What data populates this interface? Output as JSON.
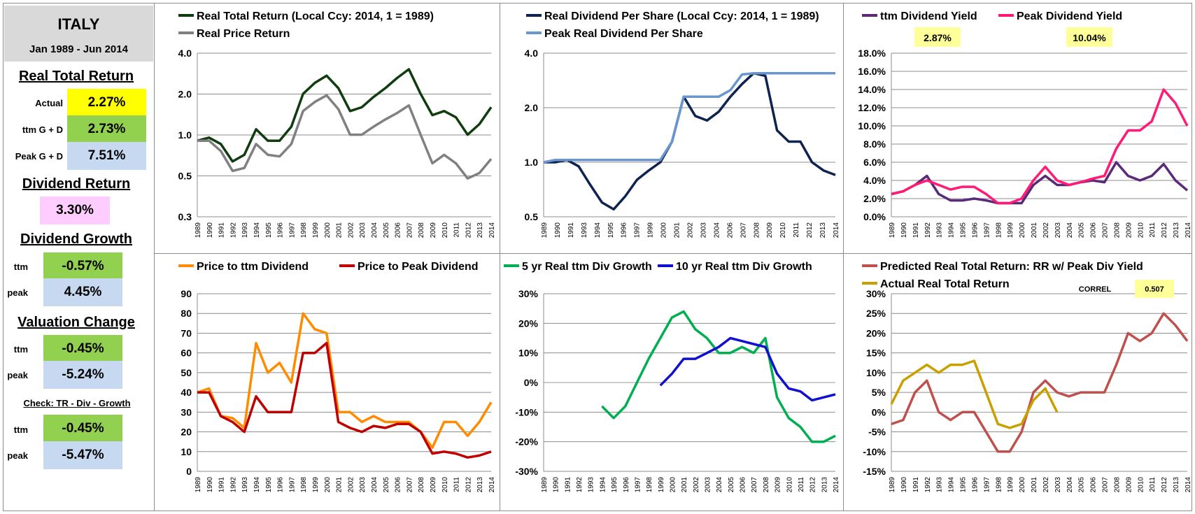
{
  "sidebar": {
    "country": "ITALY",
    "period": "Jan 1989 - Jun 2014",
    "real_total_return": {
      "header": "Real Total Return",
      "actual_label": "Actual",
      "actual": "2.27%",
      "ttm_label": "ttm  G + D",
      "ttm": "2.73%",
      "peak_label": "Peak  G + D",
      "peak": "7.51%"
    },
    "dividend_return": {
      "header": "Dividend Return",
      "value": "3.30%"
    },
    "dividend_growth": {
      "header": "Dividend Growth",
      "ttm_label": "ttm",
      "ttm": "-0.57%",
      "peak_label": "peak",
      "peak": "4.45%"
    },
    "valuation_change": {
      "header": "Valuation Change",
      "ttm_label": "ttm",
      "ttm": "-0.45%",
      "peak_label": "peak",
      "peak": "-5.24%"
    },
    "check": {
      "header": "Check: TR - Div - Growth",
      "ttm_label": "ttm",
      "ttm": "-0.45%",
      "peak_label": "peak",
      "peak": "-5.47%"
    }
  },
  "years": [
    "1989",
    "1990",
    "1991",
    "1992",
    "1993",
    "1994",
    "1995",
    "1996",
    "1997",
    "1998",
    "1999",
    "2000",
    "2001",
    "2002",
    "2003",
    "2004",
    "2005",
    "2006",
    "2007",
    "2008",
    "2009",
    "2010",
    "2011",
    "2012",
    "2013",
    "2014"
  ],
  "years_alt": [
    "1989",
    "1990",
    "1991",
    "1993",
    "1994",
    "1995",
    "1996",
    "1997",
    "1999",
    "2000",
    "2001",
    "2002",
    "2003",
    "2004",
    "2006",
    "2007",
    "2008",
    "2009",
    "2010",
    "2011",
    "2012",
    "2013",
    "2014"
  ],
  "chart_data": [
    {
      "id": "c1",
      "type": "line",
      "scale": "log",
      "yticks": [
        "4.0",
        "2.0",
        "1.0",
        "0.5",
        "0.3"
      ],
      "ylim": [
        0.3,
        4.0
      ],
      "series": [
        {
          "name": "Real Total Return (Local Ccy: 2014, 1 = 1989)",
          "color": "#0f3d0f",
          "values": [
            1.0,
            1.05,
            0.95,
            0.72,
            0.8,
            1.2,
            1.0,
            1.0,
            1.25,
            2.1,
            2.5,
            2.8,
            2.3,
            1.6,
            1.7,
            2.0,
            2.3,
            2.7,
            3.1,
            2.1,
            1.5,
            1.6,
            1.45,
            1.1,
            1.3,
            1.7
          ]
        },
        {
          "name": "Real Price Return",
          "color": "#808080",
          "values": [
            1.0,
            1.0,
            0.85,
            0.62,
            0.65,
            0.95,
            0.8,
            0.78,
            0.95,
            1.6,
            1.85,
            2.05,
            1.65,
            1.1,
            1.1,
            1.25,
            1.4,
            1.55,
            1.75,
            1.1,
            0.7,
            0.8,
            0.7,
            0.55,
            0.6,
            0.75
          ]
        }
      ]
    },
    {
      "id": "c2",
      "type": "line",
      "scale": "log",
      "yticks": [
        "4.0",
        "2.0",
        "1.0",
        "0.5"
      ],
      "ylim": [
        0.5,
        4.0
      ],
      "series": [
        {
          "name": "Real Dividend Per Share (Local Ccy: 2014, 1 = 1989)",
          "color": "#0f2350",
          "values": [
            1.0,
            1.0,
            1.03,
            0.95,
            0.75,
            0.6,
            0.55,
            0.65,
            0.8,
            0.9,
            1.0,
            1.3,
            2.3,
            1.8,
            1.7,
            1.9,
            2.3,
            2.7,
            3.1,
            3.0,
            1.5,
            1.3,
            1.3,
            1.0,
            0.9,
            0.85
          ]
        },
        {
          "name": "Peak Real Dividend Per Share",
          "color": "#6a96cf",
          "values": [
            1.0,
            1.03,
            1.03,
            1.03,
            1.03,
            1.03,
            1.03,
            1.03,
            1.03,
            1.03,
            1.03,
            1.3,
            2.3,
            2.3,
            2.3,
            2.3,
            2.5,
            3.05,
            3.1,
            3.1,
            3.1,
            3.1,
            3.1,
            3.1,
            3.1,
            3.1
          ]
        }
      ]
    },
    {
      "id": "c3",
      "type": "line",
      "yticks": [
        "18.0%",
        "16.0%",
        "14.0%",
        "12.0%",
        "10.0%",
        "8.0%",
        "6.0%",
        "4.0%",
        "2.0%",
        "0.0%"
      ],
      "ylim": [
        0,
        18
      ],
      "annotations": [
        "2.87%",
        "10.04%"
      ],
      "series": [
        {
          "name": "ttm Dividend Yield",
          "color": "#5a2a7a",
          "values": [
            2.5,
            2.8,
            3.5,
            4.5,
            2.5,
            1.8,
            1.8,
            2.0,
            1.8,
            1.5,
            1.5,
            1.5,
            3.5,
            4.5,
            3.5,
            3.5,
            3.8,
            4.0,
            3.8,
            6.0,
            4.5,
            4.0,
            4.5,
            5.8,
            4.0,
            2.9
          ]
        },
        {
          "name": "Peak Dividend Yield",
          "color": "#ff1a75",
          "values": [
            2.5,
            2.8,
            3.5,
            4.0,
            3.5,
            3.0,
            3.3,
            3.3,
            2.5,
            1.5,
            1.5,
            2.0,
            4.0,
            5.5,
            4.0,
            3.5,
            3.8,
            4.2,
            4.5,
            7.5,
            9.5,
            9.5,
            10.5,
            14.0,
            12.5,
            10.0
          ]
        }
      ]
    },
    {
      "id": "c4",
      "type": "line",
      "yticks": [
        "90",
        "80",
        "70",
        "60",
        "50",
        "40",
        "30",
        "20",
        "10",
        "0"
      ],
      "ylim": [
        0,
        90
      ],
      "series": [
        {
          "name": "Price to ttm Dividend",
          "color": "#ff8c00",
          "values": [
            40,
            42,
            28,
            27,
            22,
            65,
            50,
            55,
            45,
            80,
            72,
            70,
            30,
            30,
            25,
            28,
            25,
            25,
            25,
            20,
            12,
            25,
            25,
            18,
            25,
            35
          ]
        },
        {
          "name": "Price to Peak Dividend",
          "color": "#c00000",
          "values": [
            40,
            40,
            28,
            25,
            20,
            38,
            30,
            30,
            30,
            60,
            60,
            65,
            25,
            22,
            20,
            23,
            22,
            24,
            24,
            20,
            9,
            10,
            9,
            7,
            8,
            10
          ]
        }
      ]
    },
    {
      "id": "c5",
      "type": "line",
      "yticks": [
        "30%",
        "20%",
        "10%",
        "0%",
        "-10%",
        "-20%",
        "-30%"
      ],
      "ylim": [
        -30,
        30
      ],
      "series": [
        {
          "name": "5 yr Real ttm Div Growth",
          "color": "#00b050",
          "values": [
            null,
            null,
            null,
            null,
            null,
            -8,
            -12,
            -8,
            0,
            8,
            15,
            22,
            24,
            18,
            15,
            10,
            10,
            12,
            10,
            15,
            -5,
            -12,
            -15,
            -20,
            -20,
            -18
          ]
        },
        {
          "name": "10 yr Real ttm Div Growth",
          "color": "#1010d0",
          "values": [
            null,
            null,
            null,
            null,
            null,
            null,
            null,
            null,
            null,
            null,
            -1,
            3,
            8,
            8,
            10,
            12,
            15,
            14,
            13,
            12,
            3,
            -2,
            -3,
            -6,
            -5,
            -4
          ]
        }
      ]
    },
    {
      "id": "c6",
      "type": "line",
      "yticks": [
        "30%",
        "25%",
        "20%",
        "15%",
        "10%",
        "5%",
        "0%",
        "-5%",
        "-10%",
        "-15%"
      ],
      "ylim": [
        -15,
        30
      ],
      "annotations": [
        "CORREL",
        "0.507"
      ],
      "series": [
        {
          "name": "Predicted Real Total Return: RR w/ Peak Div Yield",
          "color": "#c0504d",
          "values": [
            -3,
            -2,
            5,
            8,
            0,
            -2,
            0,
            0,
            -5,
            -10,
            -10,
            -5,
            5,
            8,
            5,
            4,
            5,
            5,
            5,
            12,
            20,
            18,
            20,
            25,
            22,
            18
          ]
        },
        {
          "name": "Actual Real Total Return",
          "color": "#c9a000",
          "values": [
            2,
            8,
            10,
            12,
            10,
            12,
            12,
            13,
            5,
            -3,
            -4,
            -3,
            3,
            6,
            0,
            null,
            null,
            null,
            null,
            null,
            null,
            null,
            null,
            null,
            null,
            null
          ]
        }
      ]
    }
  ]
}
